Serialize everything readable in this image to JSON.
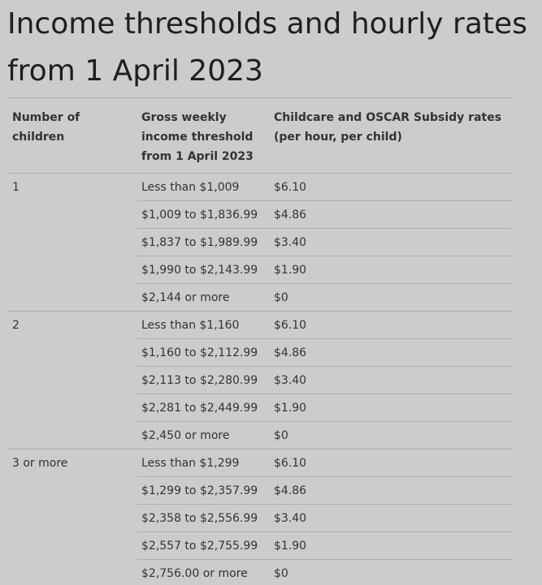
{
  "page_title": "Income thresholds and hourly rates from 1 April 2023",
  "table": {
    "headers": [
      "Number of children",
      "Gross weekly income threshold from 1 April 2023",
      "Childcare and OSCAR Subsidy rates (per hour, per child)"
    ],
    "rows": [
      {
        "children": "1",
        "threshold": "Less than $1,009",
        "rate": "$6.10"
      },
      {
        "children": "",
        "threshold": "$1,009 to $1,836.99",
        "rate": "$4.86"
      },
      {
        "children": "",
        "threshold": "$1,837 to $1,989.99",
        "rate": "$3.40"
      },
      {
        "children": "",
        "threshold": "$1,990 to $2,143.99",
        "rate": "$1.90"
      },
      {
        "children": "",
        "threshold": "$2,144 or more",
        "rate": "$0"
      },
      {
        "children": "2",
        "threshold": "Less than $1,160",
        "rate": "$6.10"
      },
      {
        "children": "",
        "threshold": "$1,160 to $2,112.99",
        "rate": "$4.86"
      },
      {
        "children": "",
        "threshold": "$2,113 to $2,280.99",
        "rate": "$3.40"
      },
      {
        "children": "",
        "threshold": "$2,281 to $2,449.99",
        "rate": "$1.90"
      },
      {
        "children": "",
        "threshold": "$2,450 or more",
        "rate": "$0"
      },
      {
        "children": "3 or more",
        "threshold": "Less than $1,299",
        "rate": "$6.10"
      },
      {
        "children": "",
        "threshold": "$1,299 to $2,357.99",
        "rate": "$4.86"
      },
      {
        "children": "",
        "threshold": "$2,358 to $2,556.99",
        "rate": "$3.40"
      },
      {
        "children": "",
        "threshold": "$2,557 to $2,755.99",
        "rate": "$1.90"
      },
      {
        "children": "",
        "threshold": "$2,756.00 or more",
        "rate": "$0"
      }
    ]
  }
}
